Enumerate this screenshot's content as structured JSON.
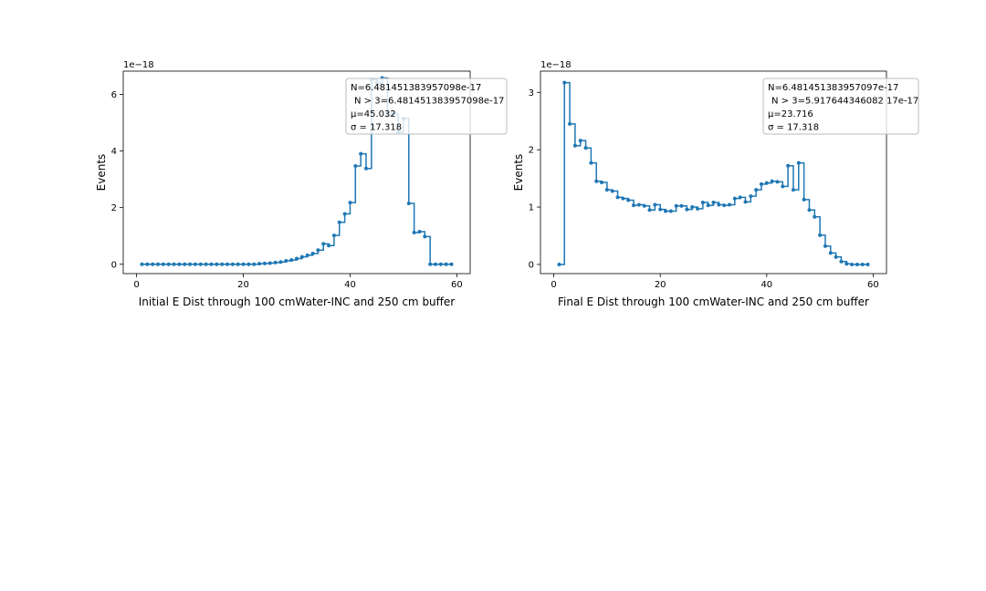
{
  "chart_data": [
    {
      "type": "line",
      "xlabel": "Initial E Dist through 100 cmWater-INC and 250 cm buffer",
      "ylabel": "Events",
      "offset_text": "1e−18",
      "xlim": [
        -2.5,
        62.5
      ],
      "ylim": [
        -0.33,
        6.82
      ],
      "x_ticks": [
        0,
        20,
        40,
        60
      ],
      "y_ticks": [
        0,
        2,
        4,
        6
      ],
      "grid": false,
      "legend": "top-right",
      "stats": [
        "N=6.481451383957098e-17",
        "N > 3=6.481451383957098e-17",
        "μ=45.032",
        "σ = 17.318"
      ],
      "series": [
        {
          "color": "#1f77b4",
          "x": [
            1,
            2,
            3,
            4,
            5,
            6,
            7,
            8,
            9,
            10,
            11,
            12,
            13,
            14,
            15,
            16,
            17,
            18,
            19,
            20,
            21,
            22,
            23,
            24,
            25,
            26,
            27,
            28,
            29,
            30,
            31,
            32,
            33,
            34,
            35,
            36,
            37,
            38,
            39,
            40,
            41,
            42,
            43,
            44,
            45,
            46,
            47,
            48,
            49,
            50,
            51,
            52,
            53,
            54,
            55,
            56,
            57,
            58,
            59
          ],
          "y": [
            0,
            0,
            0,
            0,
            0,
            0,
            0,
            0,
            0,
            0,
            0,
            0,
            0,
            0,
            0,
            0,
            0,
            0,
            0,
            0,
            0,
            0,
            0.02,
            0.03,
            0.04,
            0.06,
            0.08,
            0.12,
            0.15,
            0.2,
            0.26,
            0.32,
            0.38,
            0.5,
            0.72,
            0.66,
            1.02,
            1.48,
            1.78,
            2.18,
            3.47,
            3.9,
            3.38,
            6.52,
            6.4,
            6.58,
            5.25,
            5.32,
            4.67,
            5.15,
            2.15,
            1.12,
            1.15,
            0.98,
            0,
            0,
            0,
            0,
            0
          ]
        }
      ]
    },
    {
      "type": "line",
      "xlabel": "Final E Dist through 100 cmWater-INC and 250 cm buffer",
      "ylabel": "Events",
      "offset_text": "1e−18",
      "xlim": [
        -2.5,
        62.5
      ],
      "ylim": [
        -0.16,
        3.37
      ],
      "x_ticks": [
        0,
        20,
        40,
        60
      ],
      "y_ticks": [
        0,
        1,
        2,
        3
      ],
      "grid": false,
      "legend": "top-right",
      "stats": [
        "N=6.481451383957097e-17",
        "N > 3=5.917644346082 17e-17",
        "μ=23.716",
        "σ = 17.318"
      ],
      "series": [
        {
          "color": "#1f77b4",
          "x": [
            1,
            2,
            3,
            4,
            5,
            6,
            7,
            8,
            9,
            10,
            11,
            12,
            13,
            14,
            15,
            16,
            17,
            18,
            19,
            20,
            21,
            22,
            23,
            24,
            25,
            26,
            27,
            28,
            29,
            30,
            31,
            32,
            33,
            34,
            35,
            36,
            37,
            38,
            39,
            40,
            41,
            42,
            43,
            44,
            45,
            46,
            47,
            48,
            49,
            50,
            51,
            52,
            53,
            54,
            55,
            56,
            57,
            58,
            59
          ],
          "y": [
            0,
            3.17,
            2.45,
            2.07,
            2.16,
            2.03,
            1.77,
            1.45,
            1.43,
            1.3,
            1.28,
            1.17,
            1.15,
            1.12,
            1.03,
            1.04,
            1.02,
            0.95,
            1.04,
            0.96,
            0.93,
            0.93,
            1.02,
            1.02,
            0.96,
            1.0,
            0.97,
            1.08,
            1.03,
            1.08,
            1.04,
            1.03,
            1.04,
            1.15,
            1.17,
            1.09,
            1.19,
            1.3,
            1.4,
            1.42,
            1.45,
            1.44,
            1.36,
            1.72,
            1.3,
            1.77,
            1.13,
            0.95,
            0.83,
            0.51,
            0.32,
            0.2,
            0.13,
            0.05,
            0.01,
            0,
            0,
            0,
            0
          ]
        }
      ]
    }
  ]
}
